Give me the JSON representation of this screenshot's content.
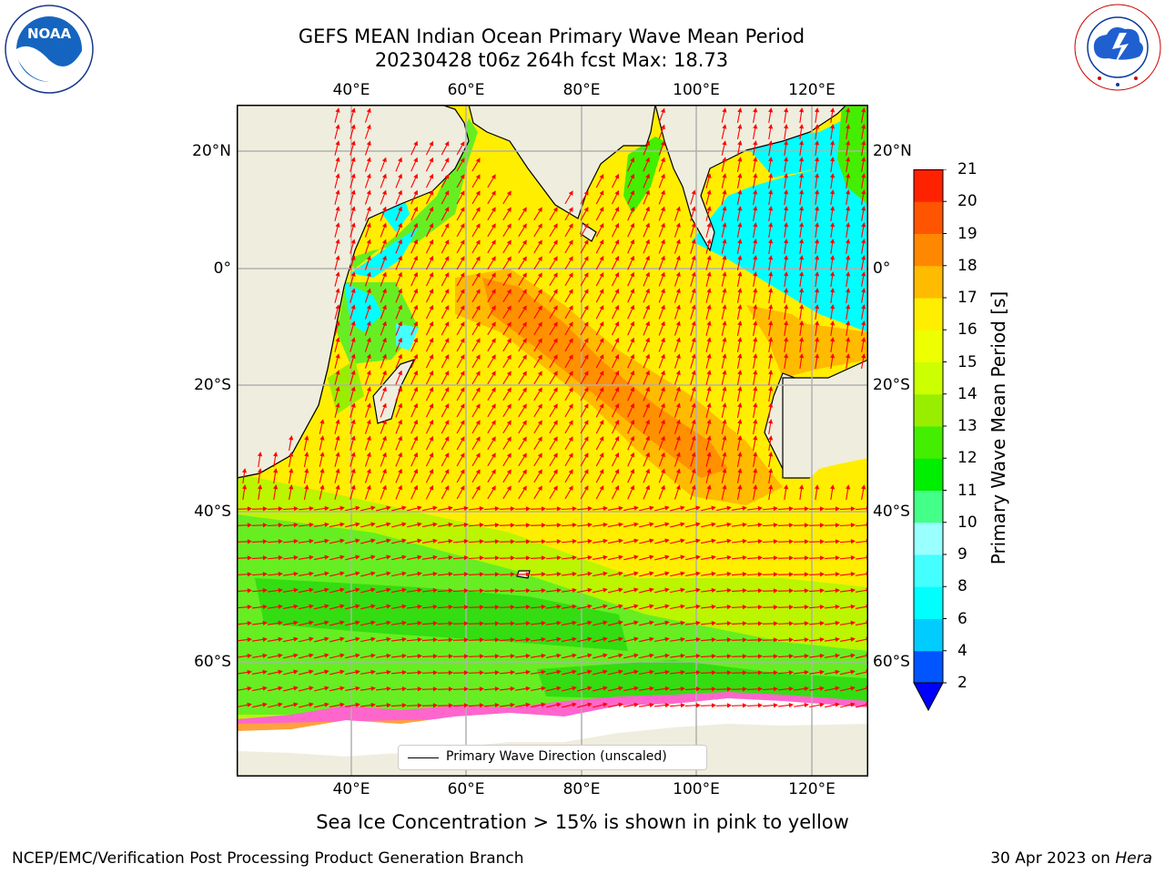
{
  "header": {
    "title_line1": "GEFS MEAN Indian Ocean Primary Wave Mean Period",
    "title_line2": "20230428 t06z 264h fcst   Max: 18.73"
  },
  "logos": {
    "left": "NOAA",
    "left_ring_text": "NATIONAL OCEANIC AND ATMOSPHERIC ADMINISTRATION · U.S. DEPARTMENT OF COMMERCE",
    "right_ring_text": "NATIONAL WEATHER SERVICE"
  },
  "map": {
    "lon_range": [
      20,
      130
    ],
    "lat_range": [
      -75,
      28
    ],
    "lon_ticks": [
      "40°E",
      "60°E",
      "80°E",
      "100°E",
      "120°E"
    ],
    "lat_ticks": [
      "20°N",
      "0°",
      "20°S",
      "40°S",
      "60°S"
    ],
    "grid": true,
    "colors": {
      "land": "#efeddd",
      "arrow": "#ff0000"
    }
  },
  "colorbar": {
    "title": "Primary Wave Mean Period [s]",
    "levels": [
      "2",
      "4",
      "6",
      "8",
      "9",
      "10",
      "11",
      "12",
      "13",
      "14",
      "15",
      "16",
      "17",
      "18",
      "19",
      "20",
      "21"
    ],
    "colors": [
      "#0055ff",
      "#00ccff",
      "#00ffff",
      "#44ffff",
      "#99ffff",
      "#44ff88",
      "#00ee00",
      "#44ee00",
      "#99ee00",
      "#ccff00",
      "#eeff00",
      "#ffee00",
      "#ffbb00",
      "#ff8800",
      "#ff5500",
      "#ff2200"
    ],
    "under_color": "#0000ff"
  },
  "legend": {
    "label": "Primary Wave Direction (unscaled)"
  },
  "subtitle": "Sea Ice Concentration > 15% is shown in pink to yellow",
  "footer": {
    "left": "NCEP/EMC/Verification Post Processing Product Generation Branch",
    "right_prefix": "30 Apr 2023 on ",
    "right_host": "Hera"
  }
}
